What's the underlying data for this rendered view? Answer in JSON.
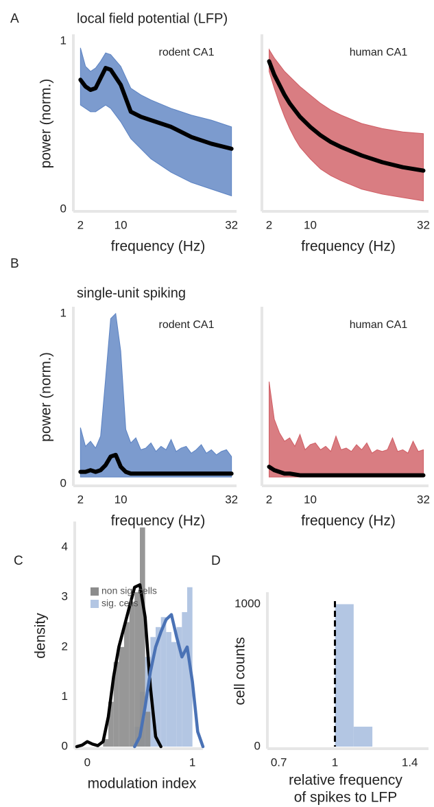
{
  "chart_data": [
    {
      "type": "line",
      "panel": "A",
      "section_title": "local field potential (LFP)",
      "label": "rodent CA1",
      "x": [
        2,
        3,
        4,
        5,
        6,
        7,
        8,
        10,
        12,
        14,
        16,
        20,
        24,
        28,
        32
      ],
      "band": {
        "color": "#5b82c2",
        "upper": [
          0.96,
          0.85,
          0.82,
          0.84,
          0.88,
          0.93,
          0.92,
          0.85,
          0.72,
          0.68,
          0.65,
          0.6,
          0.56,
          0.53,
          0.49
        ],
        "lower": [
          0.62,
          0.6,
          0.58,
          0.58,
          0.6,
          0.62,
          0.6,
          0.52,
          0.42,
          0.36,
          0.3,
          0.22,
          0.16,
          0.12,
          0.08
        ]
      },
      "series": [
        {
          "color": "#000000",
          "values": [
            0.77,
            0.73,
            0.71,
            0.72,
            0.78,
            0.84,
            0.83,
            0.74,
            0.58,
            0.55,
            0.53,
            0.49,
            0.43,
            0.39,
            0.36
          ]
        }
      ],
      "xlim": [
        1,
        33
      ],
      "ylim": [
        0,
        1.02
      ],
      "xticks": [
        2,
        10,
        32
      ],
      "yticks": [
        0,
        1
      ],
      "xlabel": "frequency (Hz)",
      "ylabel": "power (norm.)"
    },
    {
      "type": "line",
      "label": "human CA1",
      "x": [
        2,
        3,
        4,
        5,
        6,
        7,
        8,
        10,
        12,
        14,
        16,
        20,
        24,
        28,
        32
      ],
      "band": {
        "color": "#cf5c63",
        "upper": [
          0.95,
          0.9,
          0.86,
          0.82,
          0.79,
          0.76,
          0.73,
          0.68,
          0.63,
          0.59,
          0.56,
          0.51,
          0.48,
          0.46,
          0.45
        ],
        "lower": [
          0.82,
          0.72,
          0.63,
          0.55,
          0.48,
          0.42,
          0.37,
          0.3,
          0.24,
          0.2,
          0.17,
          0.12,
          0.09,
          0.07,
          0.05
        ]
      },
      "series": [
        {
          "color": "#000000",
          "values": [
            0.88,
            0.8,
            0.74,
            0.68,
            0.63,
            0.59,
            0.55,
            0.49,
            0.44,
            0.4,
            0.37,
            0.32,
            0.28,
            0.25,
            0.23
          ]
        }
      ],
      "xlim": [
        1,
        33
      ],
      "ylim": [
        0,
        1.02
      ],
      "xticks": [
        2,
        10,
        32
      ],
      "xlabel": "frequency (Hz)"
    },
    {
      "type": "line",
      "panel": "B",
      "section_title": "single-unit spiking",
      "label": "rodent CA1",
      "x": [
        2,
        3,
        4,
        5,
        6,
        7,
        8,
        9,
        10,
        11,
        12,
        13,
        14,
        15,
        16,
        17,
        18,
        19,
        20,
        21,
        22,
        23,
        24,
        25,
        26,
        27,
        28,
        29,
        30,
        31,
        32
      ],
      "band": {
        "color": "#5b82c2",
        "upper": [
          0.33,
          0.22,
          0.25,
          0.21,
          0.28,
          0.62,
          0.97,
          1.0,
          0.78,
          0.32,
          0.24,
          0.27,
          0.2,
          0.21,
          0.24,
          0.19,
          0.22,
          0.2,
          0.26,
          0.19,
          0.21,
          0.22,
          0.18,
          0.2,
          0.23,
          0.18,
          0.2,
          0.17,
          0.19,
          0.2,
          0.16
        ],
        "lower": [
          0.04,
          0.04,
          0.04,
          0.04,
          0.04,
          0.04,
          0.04,
          0.04,
          0.04,
          0.04,
          0.04,
          0.04,
          0.04,
          0.04,
          0.04,
          0.04,
          0.04,
          0.04,
          0.04,
          0.04,
          0.04,
          0.04,
          0.04,
          0.04,
          0.04,
          0.04,
          0.04,
          0.04,
          0.04,
          0.04,
          0.04
        ]
      },
      "series": [
        {
          "color": "#000000",
          "values": [
            0.07,
            0.07,
            0.08,
            0.07,
            0.08,
            0.11,
            0.16,
            0.17,
            0.1,
            0.07,
            0.06,
            0.06,
            0.06,
            0.06,
            0.06,
            0.06,
            0.06,
            0.06,
            0.06,
            0.06,
            0.06,
            0.06,
            0.06,
            0.06,
            0.06,
            0.06,
            0.06,
            0.06,
            0.06,
            0.06,
            0.06
          ]
        }
      ],
      "xlim": [
        1,
        33
      ],
      "ylim": [
        0,
        1.02
      ],
      "xticks": [
        2,
        10,
        32
      ],
      "yticks": [
        0,
        1
      ],
      "xlabel": "frequency (Hz)",
      "ylabel": "power (norm.)"
    },
    {
      "type": "line",
      "label": "human CA1",
      "x": [
        2,
        3,
        4,
        5,
        6,
        7,
        8,
        9,
        10,
        11,
        12,
        13,
        14,
        15,
        16,
        17,
        18,
        19,
        20,
        21,
        22,
        23,
        24,
        25,
        26,
        27,
        28,
        29,
        30,
        31,
        32
      ],
      "band": {
        "color": "#cf5c63",
        "upper": [
          0.6,
          0.38,
          0.3,
          0.25,
          0.27,
          0.22,
          0.29,
          0.2,
          0.23,
          0.24,
          0.2,
          0.22,
          0.19,
          0.28,
          0.2,
          0.21,
          0.19,
          0.23,
          0.2,
          0.24,
          0.18,
          0.2,
          0.19,
          0.2,
          0.27,
          0.19,
          0.2,
          0.18,
          0.25,
          0.19,
          0.2
        ],
        "lower": [
          0.04,
          0.04,
          0.04,
          0.04,
          0.04,
          0.04,
          0.04,
          0.04,
          0.04,
          0.04,
          0.04,
          0.04,
          0.04,
          0.04,
          0.04,
          0.04,
          0.04,
          0.04,
          0.04,
          0.04,
          0.04,
          0.04,
          0.04,
          0.04,
          0.04,
          0.04,
          0.04,
          0.04,
          0.04,
          0.04,
          0.04
        ]
      },
      "series": [
        {
          "color": "#000000",
          "values": [
            0.1,
            0.08,
            0.07,
            0.06,
            0.06,
            0.055,
            0.05,
            0.05,
            0.05,
            0.05,
            0.05,
            0.05,
            0.05,
            0.05,
            0.05,
            0.05,
            0.05,
            0.05,
            0.05,
            0.05,
            0.05,
            0.05,
            0.05,
            0.05,
            0.05,
            0.05,
            0.05,
            0.05,
            0.05,
            0.05,
            0.05
          ]
        }
      ],
      "xlim": [
        1,
        33
      ],
      "ylim": [
        0,
        1.02
      ],
      "xticks": [
        2,
        10,
        32
      ],
      "xlabel": "frequency (Hz)"
    },
    {
      "type": "histogram",
      "panel": "C",
      "series": [
        {
          "name": "non sig. cells",
          "color": "#8c8c8c",
          "bins": [
            0.15,
            0.2,
            0.25,
            0.3,
            0.35,
            0.4,
            0.45,
            0.5,
            0.55,
            0.6
          ],
          "values": [
            0.15,
            0.9,
            1.7,
            2.0,
            2.5,
            2.9,
            3.1,
            4.4,
            0.7
          ]
        },
        {
          "name": "sig. cells",
          "color": "#b3c6e3",
          "bins": [
            0.45,
            0.5,
            0.55,
            0.6,
            0.65,
            0.7,
            0.75,
            0.8,
            0.85,
            0.9,
            0.95,
            1.0
          ],
          "values": [
            0.4,
            1.1,
            1.8,
            2.2,
            2.4,
            2.6,
            2.3,
            2.1,
            2.4,
            2.7,
            3.2
          ]
        }
      ],
      "density_lines": [
        {
          "color": "#000000",
          "x": [
            -0.1,
            -0.05,
            0,
            0.05,
            0.1,
            0.15,
            0.2,
            0.25,
            0.3,
            0.35,
            0.4,
            0.45,
            0.5,
            0.55,
            0.6,
            0.65,
            0.7
          ],
          "values": [
            0,
            0.03,
            0.1,
            0.05,
            0.02,
            0.1,
            0.6,
            1.4,
            2.0,
            2.4,
            2.8,
            3.2,
            3.25,
            2.6,
            1.2,
            0.2,
            0
          ]
        },
        {
          "color": "#4a72b5",
          "x": [
            0.45,
            0.5,
            0.55,
            0.6,
            0.65,
            0.7,
            0.75,
            0.8,
            0.85,
            0.9,
            0.95,
            1.0,
            1.05,
            1.1
          ],
          "values": [
            0,
            0.2,
            0.8,
            1.5,
            2.0,
            2.3,
            2.55,
            2.65,
            2.2,
            1.8,
            2.0,
            1.3,
            0.3,
            0
          ]
        }
      ],
      "xlim": [
        -0.1,
        1.1
      ],
      "ylim": [
        0,
        4.45
      ],
      "xticks": [
        0,
        1
      ],
      "yticks": [
        0,
        1,
        2,
        3,
        4
      ],
      "xlabel": "modulation index",
      "ylabel": "density"
    },
    {
      "type": "histogram",
      "panel": "D",
      "series": [
        {
          "color": "#b3c6e3",
          "bins": [
            1.0,
            1.1,
            1.2
          ],
          "values": [
            1000,
            140
          ]
        }
      ],
      "reference_x": 1,
      "xlim": [
        0.65,
        1.5
      ],
      "ylim": [
        0,
        1060
      ],
      "xticks": [
        0.7,
        1,
        1.4
      ],
      "yticks": [
        0,
        1000
      ],
      "xlabel": [
        "relative frequency",
        "of spikes to LFP"
      ],
      "ylabel": "cell counts"
    }
  ]
}
